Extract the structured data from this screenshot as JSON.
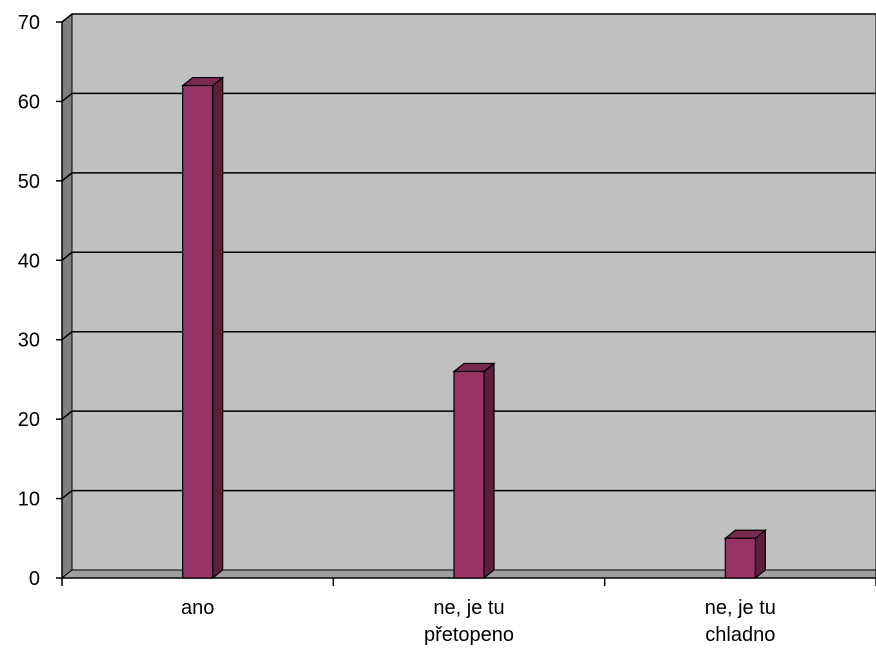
{
  "chart_data": {
    "type": "bar",
    "style": "3d-column",
    "categories": [
      [
        "ano"
      ],
      [
        "ne, je tu",
        "přetopeno"
      ],
      [
        "ne, je tu",
        "chladno"
      ]
    ],
    "values": [
      62,
      26,
      5
    ],
    "ylim": [
      0,
      70
    ],
    "y_ticks": [
      "0",
      "10",
      "20",
      "30",
      "40",
      "50",
      "60",
      "70"
    ],
    "title": "",
    "xlabel": "",
    "ylabel": "",
    "grid": true,
    "legend": false,
    "colors": {
      "plot_background": "#c0c0c0",
      "wall_side": "#808080",
      "floor": "#a0a0a0",
      "bar_front": "#993366",
      "bar_side": "#5c1f3d",
      "bar_top": "#7a2952",
      "gridline": "#000000",
      "axis": "#000000"
    }
  }
}
